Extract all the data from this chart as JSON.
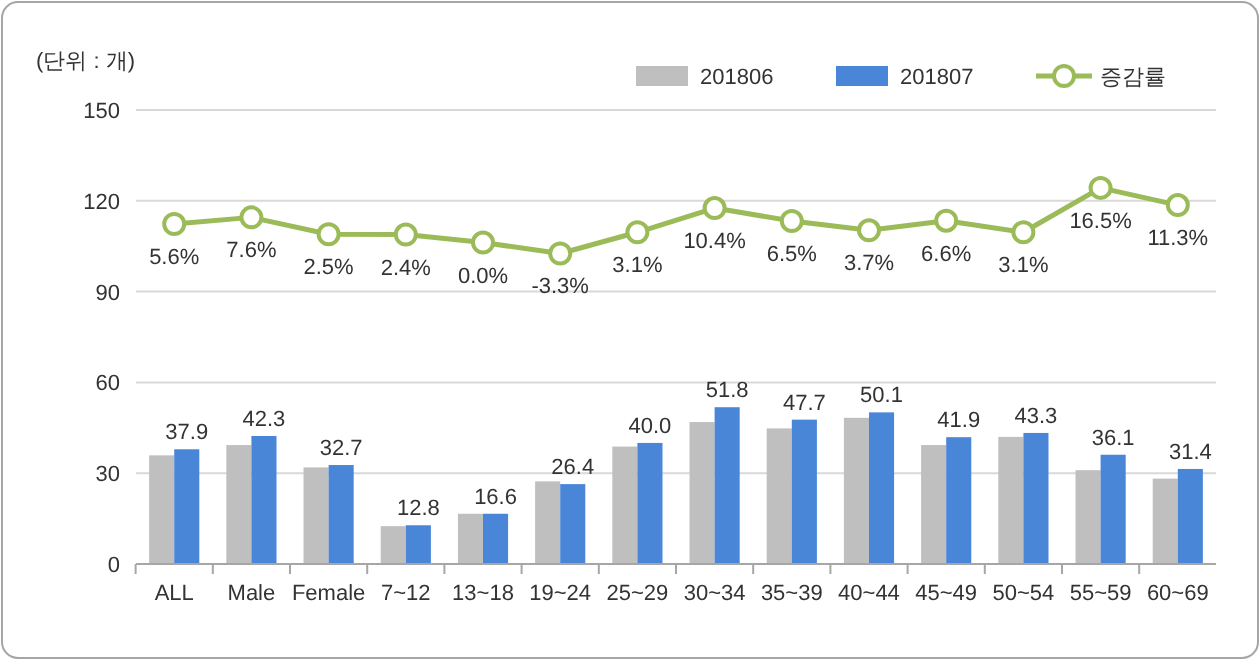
{
  "chart_data": {
    "type": "bar",
    "ylabel": "(단위 : 개)",
    "categories": [
      "ALL",
      "Male",
      "Female",
      "7~12",
      "13~18",
      "19~24",
      "25~29",
      "30~34",
      "35~39",
      "40~44",
      "45~49",
      "50~54",
      "55~59",
      "60~69"
    ],
    "series": [
      {
        "name": "201806",
        "color": "#bfbfbf",
        "values": [
          35.9,
          39.3,
          31.9,
          12.5,
          16.6,
          27.3,
          38.8,
          46.9,
          44.8,
          48.3,
          39.3,
          42.0,
          31.0,
          28.2
        ]
      },
      {
        "name": "201807",
        "color": "#4a86d8",
        "values": [
          37.9,
          42.3,
          32.7,
          12.8,
          16.6,
          26.4,
          40.0,
          51.8,
          47.7,
          50.1,
          41.9,
          43.3,
          36.1,
          31.4
        ],
        "value_labels": [
          "37.9",
          "42.3",
          "32.7",
          "12.8",
          "16.6",
          "26.4",
          "40.0",
          "51.8",
          "47.7",
          "50.1",
          "41.9",
          "43.3",
          "36.1",
          "31.4"
        ]
      },
      {
        "name": "증감률",
        "type": "line",
        "axis": "y2",
        "color": "#9bbb59",
        "marker": "circle",
        "values": [
          5.6,
          7.6,
          2.5,
          2.4,
          0.0,
          -3.3,
          3.1,
          10.4,
          6.5,
          3.7,
          6.6,
          3.1,
          16.5,
          11.3
        ],
        "value_labels": [
          "5.6%",
          "7.6%",
          "2.5%",
          "2.4%",
          "0.0%",
          "-3.3%",
          "3.1%",
          "10.4%",
          "6.5%",
          "3.7%",
          "6.6%",
          "3.1%",
          "16.5%",
          "11.3%"
        ]
      }
    ],
    "ylim": [
      0,
      150
    ],
    "yticks": [
      0,
      30,
      60,
      90,
      120,
      150
    ],
    "y2lim": [
      -97,
      40
    ],
    "grid": "y",
    "legend": "top"
  }
}
